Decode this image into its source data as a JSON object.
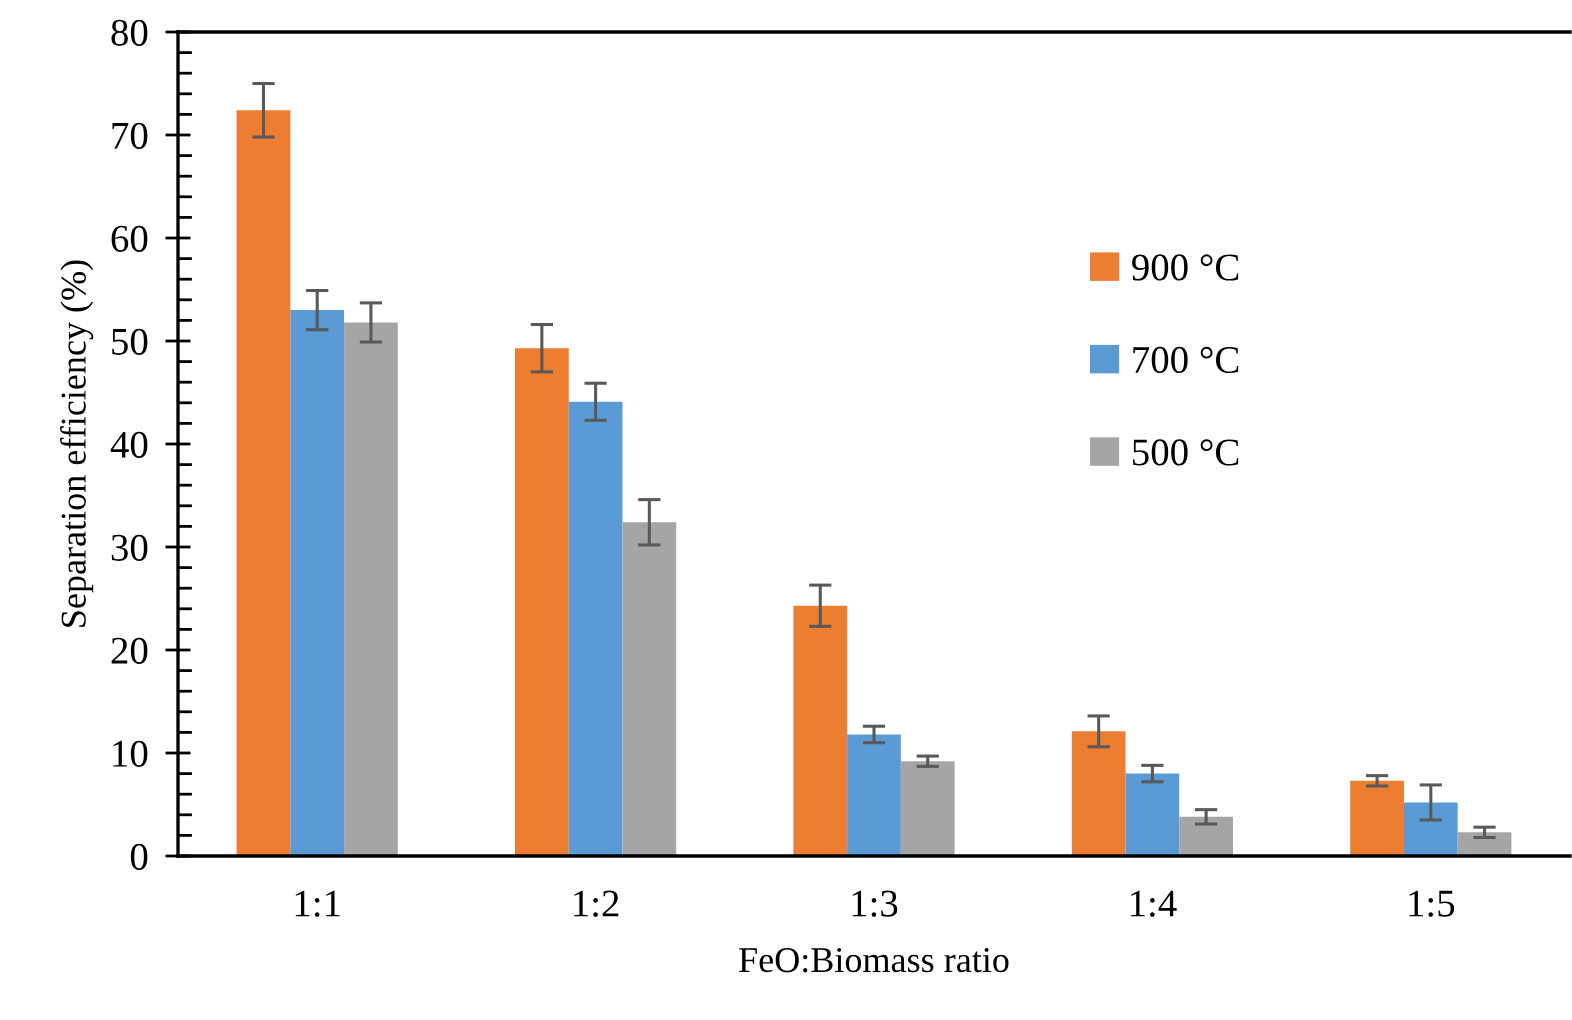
{
  "chart_data": {
    "type": "bar",
    "xlabel": "FeO:Biomass ratio",
    "ylabel": "Separation efficiency (%)",
    "categories": [
      "1:1",
      "1:2",
      "1:3",
      "1:4",
      "1:5"
    ],
    "series": [
      {
        "name": "900 °C",
        "color": "#ed7d31",
        "values": [
          72.4,
          49.3,
          24.3,
          12.1,
          7.3
        ],
        "errors": [
          2.6,
          2.3,
          2.0,
          1.5,
          0.5
        ]
      },
      {
        "name": "700 °C",
        "color": "#5b9bd5",
        "values": [
          53.0,
          44.1,
          11.8,
          8.0,
          5.2
        ],
        "errors": [
          1.9,
          1.8,
          0.8,
          0.8,
          1.7
        ]
      },
      {
        "name": "500 °C",
        "color": "#a5a5a5",
        "values": [
          51.8,
          32.4,
          9.2,
          3.8,
          2.3
        ],
        "errors": [
          1.9,
          2.2,
          0.5,
          0.7,
          0.5
        ]
      }
    ],
    "ylim": [
      0,
      80
    ],
    "yticks": [
      0,
      {
        "value": 2,
        "label": null
      },
      {
        "value": 4,
        "label": null
      },
      {
        "value": 6,
        "label": null
      },
      {
        "value": 8,
        "label": null
      },
      10,
      {
        "value": 12,
        "label": null
      },
      {
        "value": 14,
        "label": null
      },
      {
        "value": 16,
        "label": null
      },
      {
        "value": 18,
        "label": null
      },
      20,
      {
        "value": 22,
        "label": null
      },
      {
        "value": 24,
        "label": null
      },
      {
        "value": 26,
        "label": null
      },
      {
        "value": 28,
        "label": null
      },
      30,
      {
        "value": 32,
        "label": null
      },
      {
        "value": 34,
        "label": null
      },
      {
        "value": 36,
        "label": null
      },
      {
        "value": 38,
        "label": null
      },
      40,
      {
        "value": 42,
        "label": null
      },
      {
        "value": 44,
        "label": null
      },
      {
        "value": 46,
        "label": null
      },
      {
        "value": 48,
        "label": null
      },
      50,
      {
        "value": 52,
        "label": null
      },
      {
        "value": 54,
        "label": null
      },
      {
        "value": 56,
        "label": null
      },
      {
        "value": 58,
        "label": null
      },
      60,
      {
        "value": 62,
        "label": null
      },
      {
        "value": 64,
        "label": null
      },
      {
        "value": 66,
        "label": null
      },
      {
        "value": 68,
        "label": null
      },
      70,
      {
        "value": 72,
        "label": null
      },
      {
        "value": 74,
        "label": null
      },
      {
        "value": 76,
        "label": null
      },
      {
        "value": 78,
        "label": null
      },
      80
    ],
    "grid": false,
    "legend": "top right"
  }
}
